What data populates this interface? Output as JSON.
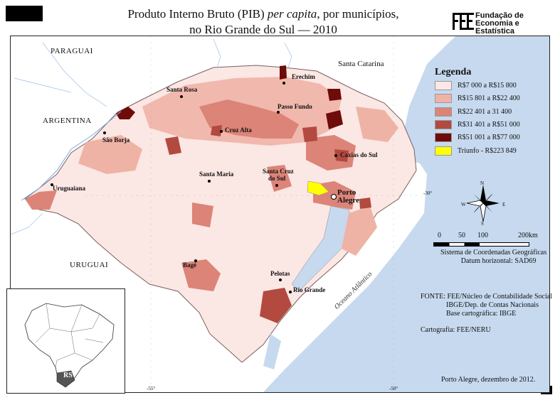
{
  "title": {
    "line1_prefix": "Produto Interno Bruto (PIB) ",
    "line1_italic": "per capita",
    "line1_suffix": ", por municípios,",
    "line2": "no Rio Grande do Sul — 2010"
  },
  "logo": {
    "line1": "Fundação de",
    "line2": "Economia e",
    "line3": "Estatística"
  },
  "legend": {
    "title": "Legenda",
    "items": [
      {
        "label": "R$7 000 a R$15 800",
        "color": "#fbe7e4"
      },
      {
        "label": "R$15 801 a R$22 400",
        "color": "#efb3a6"
      },
      {
        "label": "R$22 401 a 31 400",
        "color": "#dc8478"
      },
      {
        "label": "R$31 401 a R$51 000",
        "color": "#b24a3f"
      },
      {
        "label": "R$51 001 a R$77 000",
        "color": "#6e0b0b"
      },
      {
        "label": "Triunfo - R$223 849",
        "color": "#ffff00"
      }
    ]
  },
  "scalebar": {
    "ticks": [
      "0",
      "50",
      "100",
      "200km"
    ]
  },
  "coords": {
    "line1": "Sistema de Coordenadas Geográficas",
    "line2": "Datum horizontal: SAD69"
  },
  "source": {
    "line1": "FONTE: FEE/Núcleo de Contabilidade Social",
    "line2": "IBGE/Dep. de Contas Nacionais",
    "line3": "Base cartográfica: IBGE"
  },
  "cartography": "Cartografia: FEE/NERU",
  "date": "Porto Alegre, dezembro de 2012.",
  "north": {
    "n": "N",
    "s": "S",
    "e": "E",
    "w": "W"
  },
  "grid_labels": {
    "lat": "-30°",
    "lon1": "-55°",
    "lon2": "-50°"
  },
  "neighbors": {
    "paraguai": "PARAGUAI",
    "argentina": "ARGENTINA",
    "uruguai": "URUGUAI",
    "santa_catarina": "Santa Catarina",
    "ocean": "Oceano Atlântico"
  },
  "cities": {
    "erechim": "Erechim",
    "santa_rosa": "Santa Rosa",
    "passo_fundo": "Passo Fundo",
    "cruz_alta": "Cruz Alta",
    "sao_borja": "São Borja",
    "caxias": "Caxias do Sul",
    "santa_maria": "Santa Maria",
    "santa_cruz_1": "Santa Cruz",
    "santa_cruz_2": "do Sul",
    "uruguaiana": "Uruguaiana",
    "porto_alegre_1": "Porto",
    "porto_alegre_2": "Alegre",
    "bage": "Bagé",
    "pelotas": "Pelotas",
    "rio_grande": "Rio Grande"
  },
  "inset": {
    "state_label": "RS"
  }
}
